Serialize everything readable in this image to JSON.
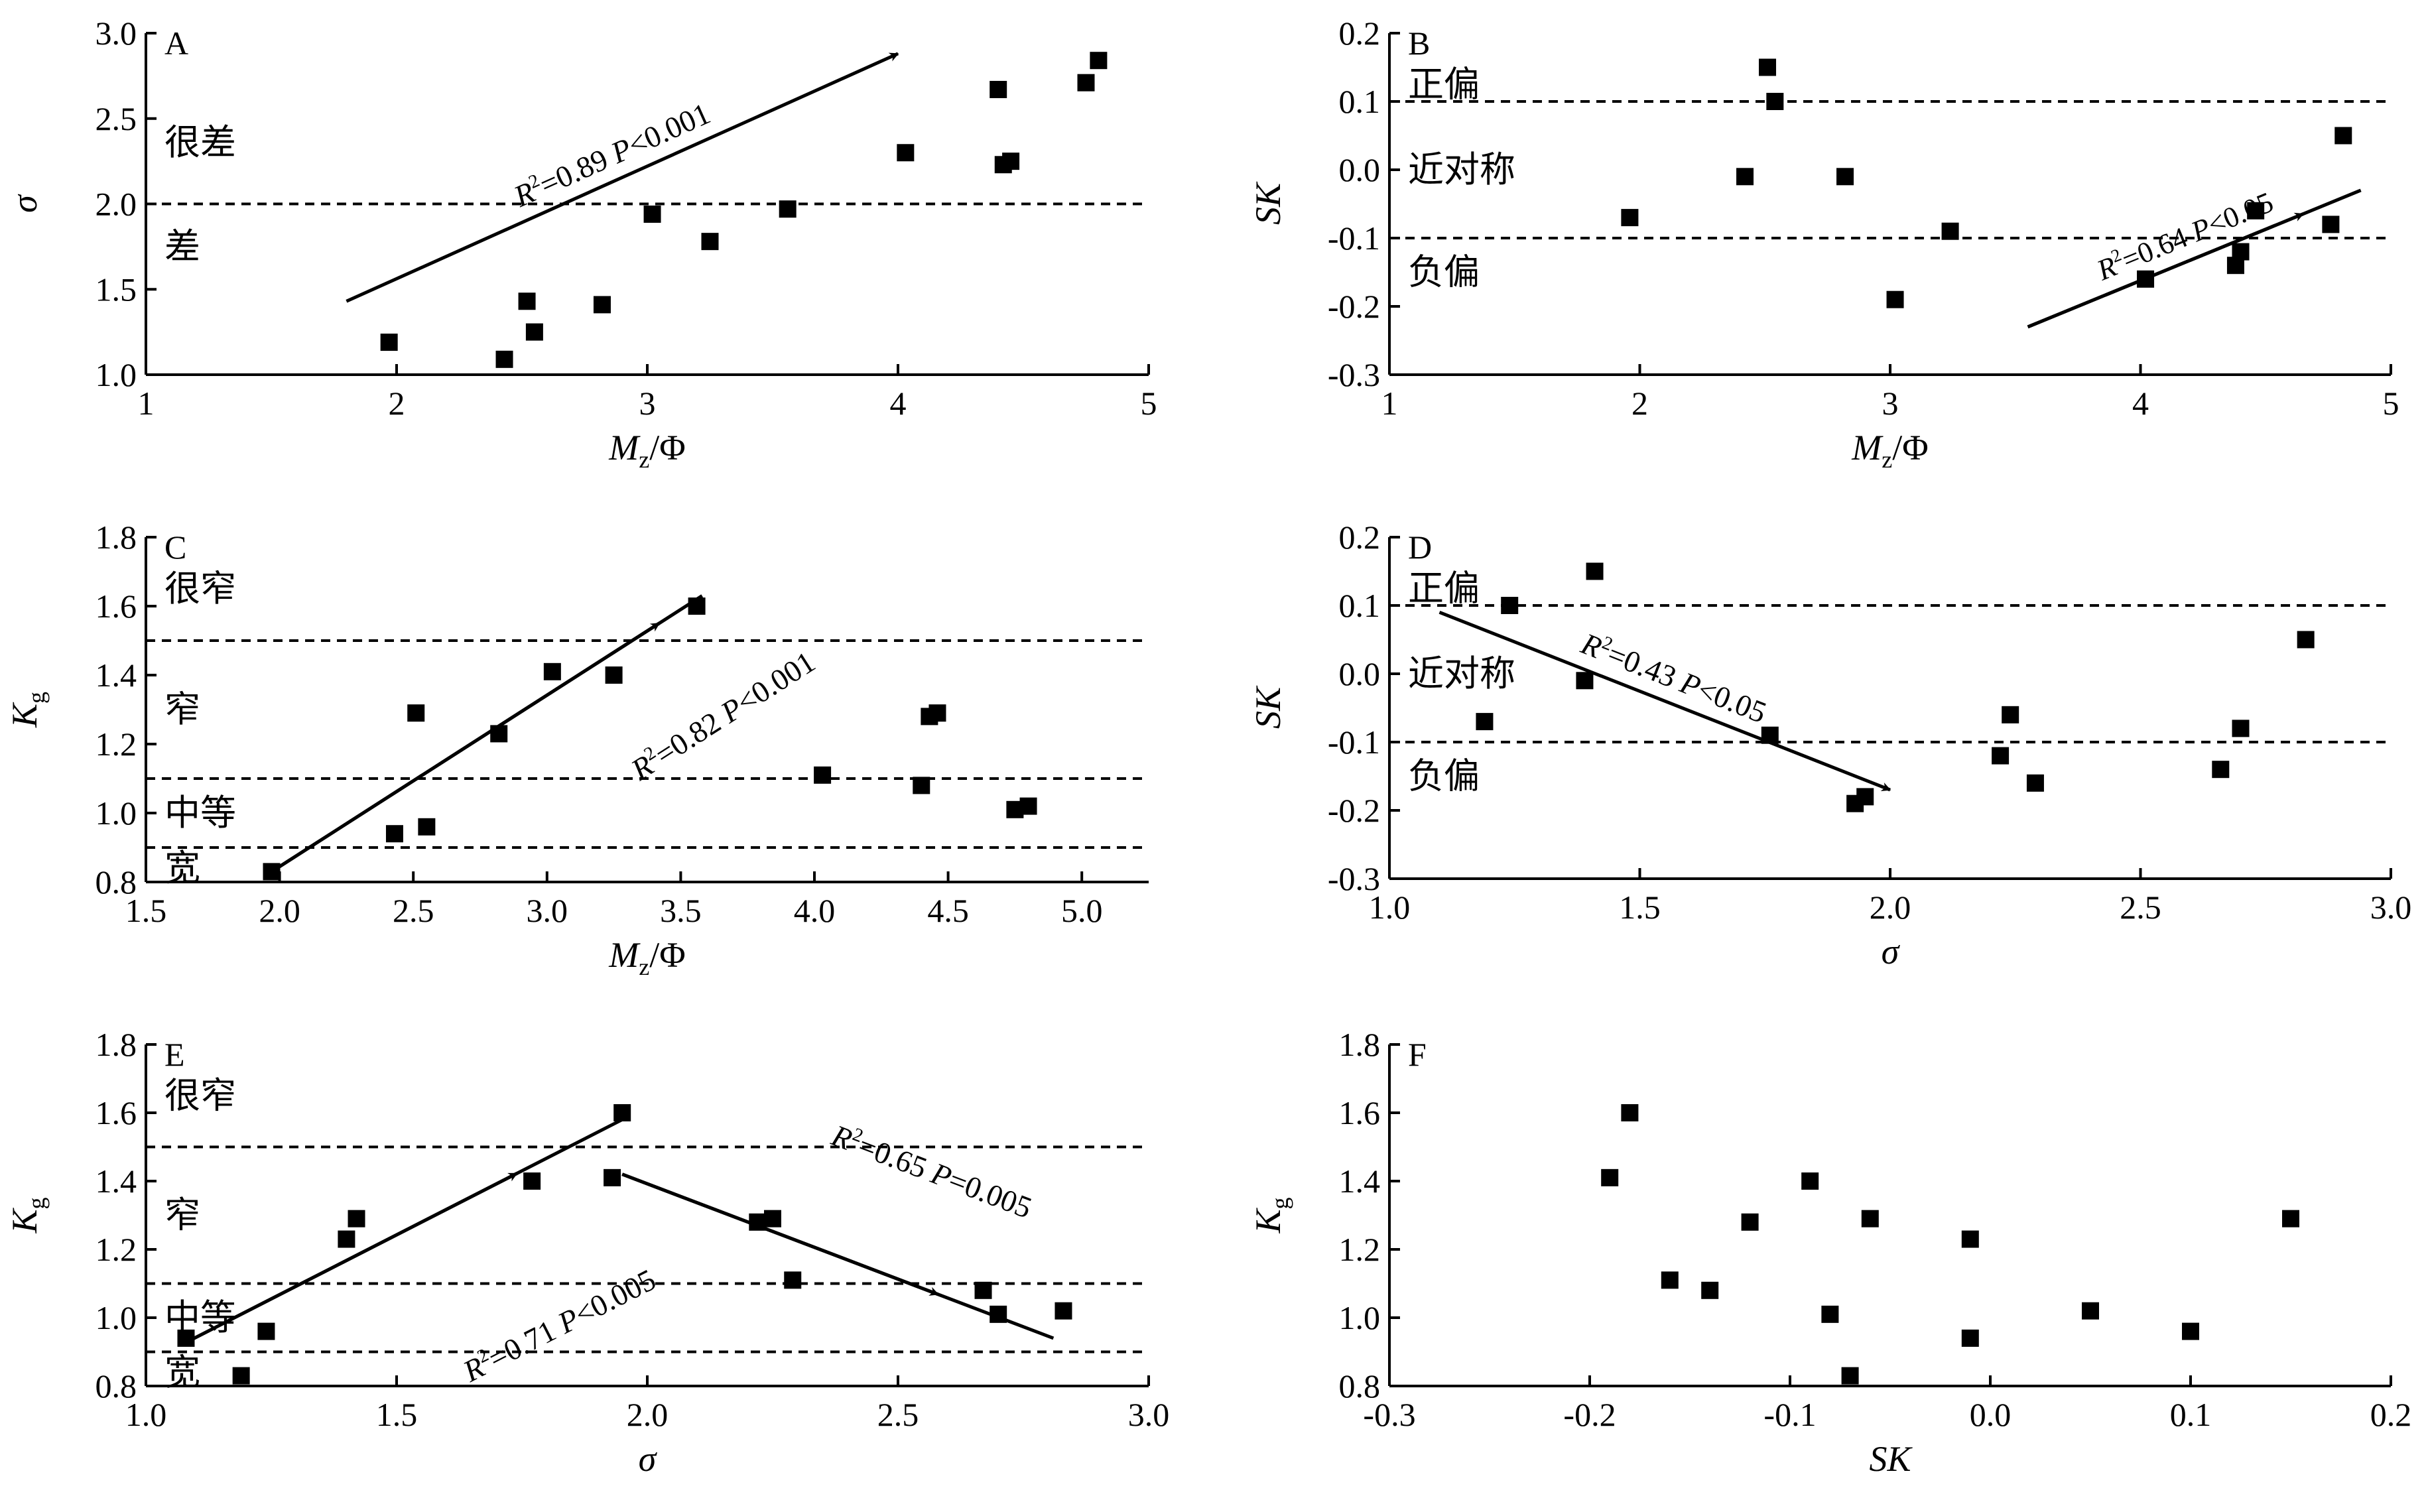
{
  "chart_data": [
    {
      "panel": "A",
      "type": "scatter",
      "xlabel_main": "M",
      "xlabel_sub": "z",
      "xlabel_rest": "/Φ",
      "ylabel": "σ",
      "xlim": [
        1,
        5
      ],
      "ylim": [
        1.0,
        3.0
      ],
      "xticks": [
        1,
        2,
        3,
        4,
        5
      ],
      "xtick_labels": [
        "1",
        "2",
        "3",
        "4",
        "5"
      ],
      "yticks": [
        1.0,
        1.5,
        2.0,
        2.5,
        3.0
      ],
      "ytick_labels": [
        "1.0",
        "1.5",
        "2.0",
        "2.5",
        "3.0"
      ],
      "points": [
        [
          1.97,
          1.19
        ],
        [
          2.43,
          1.09
        ],
        [
          2.52,
          1.43
        ],
        [
          2.55,
          1.25
        ],
        [
          2.82,
          1.41
        ],
        [
          3.02,
          1.94
        ],
        [
          3.25,
          1.78
        ],
        [
          3.56,
          1.97
        ],
        [
          4.03,
          2.3
        ],
        [
          4.4,
          2.67
        ],
        [
          4.42,
          2.23
        ],
        [
          4.45,
          2.25
        ],
        [
          4.75,
          2.71
        ],
        [
          4.8,
          2.84
        ]
      ],
      "hlines": [
        2.0
      ],
      "zones": [
        {
          "label": "很差",
          "y": 2.36
        },
        {
          "label": "差",
          "y": 1.75
        }
      ],
      "arrows": [
        {
          "from": [
            1.8,
            1.43
          ],
          "to": [
            4.0,
            2.88
          ],
          "head": "end"
        }
      ],
      "annotations": [
        {
          "sup": "2",
          "text_pre": "R",
          "text_post": "=0.89  ",
          "italic2": "P",
          "text_end": "<0.001",
          "x": 1.8,
          "y": 1.43,
          "to": [
            4.0,
            2.88
          ],
          "offset": -22,
          "size": 46
        }
      ]
    },
    {
      "panel": "B",
      "type": "scatter",
      "xlabel_main": "M",
      "xlabel_sub": "z",
      "xlabel_rest": "/Φ",
      "ylabel": "SK",
      "xlim": [
        1,
        5
      ],
      "ylim": [
        -0.3,
        0.2
      ],
      "xticks": [
        1,
        2,
        3,
        4,
        5
      ],
      "xtick_labels": [
        "1",
        "2",
        "3",
        "4",
        "5"
      ],
      "yticks": [
        -0.3,
        -0.2,
        -0.1,
        0.0,
        0.1,
        0.2
      ],
      "ytick_labels": [
        "-0.3",
        "-0.2",
        "-0.1",
        "0.0",
        "0.1",
        "0.2"
      ],
      "points": [
        [
          1.96,
          -0.07
        ],
        [
          2.42,
          -0.01
        ],
        [
          2.51,
          0.15
        ],
        [
          2.54,
          0.1
        ],
        [
          2.82,
          -0.01
        ],
        [
          3.02,
          -0.19
        ],
        [
          3.24,
          -0.09
        ],
        [
          4.02,
          -0.16
        ],
        [
          4.38,
          -0.14
        ],
        [
          4.4,
          -0.12
        ],
        [
          4.46,
          -0.06
        ],
        [
          4.76,
          -0.08
        ],
        [
          4.81,
          0.05
        ]
      ],
      "hlines": [
        0.1,
        -0.1
      ],
      "zones": [
        {
          "label": "正偏",
          "y": 0.125
        },
        {
          "label": "近对称",
          "y": 0.0
        },
        {
          "label": "负偏",
          "y": -0.15
        }
      ],
      "arrows": [
        {
          "from": [
            3.55,
            -0.23
          ],
          "to": [
            4.88,
            -0.03
          ],
          "head": "mid",
          "head_at": 4.65
        }
      ],
      "annotations": [
        {
          "sup": "2",
          "text_pre": "R",
          "text_post": "=0.64  ",
          "italic2": "P",
          "text_end": "<0.05",
          "x": 3.55,
          "y": -0.23,
          "to": [
            4.88,
            -0.03
          ],
          "offset": -22,
          "size": 44
        }
      ]
    },
    {
      "panel": "C",
      "type": "scatter",
      "xlabel_main": "M",
      "xlabel_sub": "z",
      "xlabel_rest": "/Φ",
      "ylabel_main": "K",
      "ylabel_sub": "g",
      "xlim": [
        1.5,
        5.25
      ],
      "ylim": [
        0.8,
        1.8
      ],
      "xticks": [
        1.5,
        2.0,
        2.5,
        3.0,
        3.5,
        4.0,
        4.5,
        5.0
      ],
      "xtick_labels": [
        "1.5",
        "2.0",
        "2.5",
        "3.0",
        "3.5",
        "4.0",
        "4.5",
        "5.0"
      ],
      "yticks": [
        0.8,
        1.0,
        1.2,
        1.4,
        1.6,
        1.8
      ],
      "ytick_labels": [
        "0.8",
        "1.0",
        "1.2",
        "1.4",
        "1.6",
        "1.8"
      ],
      "points": [
        [
          1.97,
          0.83
        ],
        [
          2.43,
          0.94
        ],
        [
          2.51,
          1.29
        ],
        [
          2.55,
          0.96
        ],
        [
          2.82,
          1.23
        ],
        [
          3.02,
          1.41
        ],
        [
          3.25,
          1.4
        ],
        [
          3.56,
          1.6
        ],
        [
          4.03,
          1.11
        ],
        [
          4.4,
          1.08
        ],
        [
          4.43,
          1.28
        ],
        [
          4.46,
          1.29
        ],
        [
          4.75,
          1.01
        ],
        [
          4.8,
          1.02
        ]
      ],
      "hlines": [
        1.5,
        1.1,
        0.9
      ],
      "zones": [
        {
          "label": "很窄",
          "y": 1.65
        },
        {
          "label": "窄",
          "y": 1.3
        },
        {
          "label": "中等",
          "y": 1.0
        },
        {
          "label": "宽",
          "y": 0.84
        }
      ],
      "arrows": [
        {
          "from": [
            1.95,
            0.82
          ],
          "to": [
            3.58,
            1.63
          ],
          "head": "mid",
          "head_at": 3.42
        }
      ],
      "annotations": [
        {
          "sup": "2",
          "text_pre": "R",
          "text_post": "=0.82  ",
          "italic2": "P",
          "text_end": "<0.001",
          "x": 2.8,
          "y": 0.93,
          "to": [
            4.43,
            1.74
          ],
          "offset": 48,
          "size": 46
        }
      ]
    },
    {
      "panel": "D",
      "type": "scatter",
      "xlabel": "σ",
      "ylabel": "SK",
      "xlim": [
        1.0,
        3.0
      ],
      "ylim": [
        -0.3,
        0.2
      ],
      "xticks": [
        1.0,
        1.5,
        2.0,
        2.5,
        3.0
      ],
      "xtick_labels": [
        "1.0",
        "1.5",
        "2.0",
        "2.5",
        "3.0"
      ],
      "yticks": [
        -0.3,
        -0.2,
        -0.1,
        0.0,
        0.1,
        0.2
      ],
      "ytick_labels": [
        "-0.3",
        "-0.2",
        "-0.1",
        "0.0",
        "0.1",
        "0.2"
      ],
      "points": [
        [
          1.19,
          -0.07
        ],
        [
          1.24,
          0.1
        ],
        [
          1.39,
          -0.01
        ],
        [
          1.41,
          0.15
        ],
        [
          1.76,
          -0.09
        ],
        [
          1.93,
          -0.19
        ],
        [
          1.95,
          -0.18
        ],
        [
          2.22,
          -0.12
        ],
        [
          2.24,
          -0.06
        ],
        [
          2.29,
          -0.16
        ],
        [
          2.66,
          -0.14
        ],
        [
          2.7,
          -0.08
        ],
        [
          2.83,
          0.05
        ]
      ],
      "hlines": [
        0.1,
        -0.1
      ],
      "zones": [
        {
          "label": "正偏",
          "y": 0.125
        },
        {
          "label": "近对称",
          "y": 0.0
        },
        {
          "label": "负偏",
          "y": -0.15
        }
      ],
      "arrows": [
        {
          "from": [
            1.1,
            0.09
          ],
          "to": [
            2.0,
            -0.17
          ],
          "head": "end"
        }
      ],
      "annotations": [
        {
          "sup": "2",
          "text_pre": "R",
          "text_post": "=0.43  ",
          "italic2": "P",
          "text_end": "<0.05",
          "x": 1.1,
          "y": 0.09,
          "to": [
            2.0,
            -0.17
          ],
          "offset": -22,
          "size": 46
        }
      ]
    },
    {
      "panel": "E",
      "type": "scatter",
      "xlabel": "σ",
      "ylabel_main": "K",
      "ylabel_sub": "g",
      "xlim": [
        1.0,
        3.0
      ],
      "ylim": [
        0.8,
        1.8
      ],
      "xticks": [
        1.0,
        1.5,
        2.0,
        2.5,
        3.0
      ],
      "xtick_labels": [
        "1.0",
        "1.5",
        "2.0",
        "2.5",
        "3.0"
      ],
      "yticks": [
        0.8,
        1.0,
        1.2,
        1.4,
        1.6,
        1.8
      ],
      "ytick_labels": [
        "0.8",
        "1.0",
        "1.2",
        "1.4",
        "1.6",
        "1.8"
      ],
      "points": [
        [
          1.08,
          0.94
        ],
        [
          1.19,
          0.83
        ],
        [
          1.24,
          0.96
        ],
        [
          1.4,
          1.23
        ],
        [
          1.42,
          1.29
        ],
        [
          1.77,
          1.4
        ],
        [
          1.93,
          1.41
        ],
        [
          1.95,
          1.6
        ],
        [
          2.22,
          1.28
        ],
        [
          2.25,
          1.29
        ],
        [
          2.29,
          1.11
        ],
        [
          2.67,
          1.08
        ],
        [
          2.7,
          1.01
        ],
        [
          2.83,
          1.02
        ]
      ],
      "hlines": [
        1.5,
        1.1,
        0.9
      ],
      "zones": [
        {
          "label": "很窄",
          "y": 1.65
        },
        {
          "label": "窄",
          "y": 1.3
        },
        {
          "label": "中等",
          "y": 1.0
        },
        {
          "label": "宽",
          "y": 0.84
        }
      ],
      "arrows": [
        {
          "from": [
            1.07,
            0.92
          ],
          "to": [
            1.95,
            1.58
          ],
          "head": "mid",
          "head_at": 1.74
        },
        {
          "from": [
            1.95,
            1.42
          ],
          "to": [
            2.81,
            0.94
          ],
          "head": "mid",
          "head_at": 2.58
        }
      ],
      "annotations": [
        {
          "sup": "2",
          "text_pre": "R",
          "text_post": "=0.71  ",
          "italic2": "P",
          "text_end": "<0.005",
          "x": 1.37,
          "y": 0.69,
          "to": [
            2.25,
            1.35
          ],
          "offset": 40,
          "size": 46
        },
        {
          "sup": "2",
          "text_pre": "R",
          "text_post": "=0.65  ",
          "italic2": "P",
          "text_end": "=0.005",
          "x": 2.12,
          "y": 1.6,
          "to": [
            2.98,
            1.12
          ],
          "offset": -22,
          "size": 46
        }
      ]
    },
    {
      "panel": "F",
      "type": "scatter",
      "xlabel": "SK",
      "ylabel_main": "K",
      "ylabel_sub": "g",
      "xlim": [
        -0.3,
        0.2
      ],
      "ylim": [
        0.8,
        1.8
      ],
      "xticks": [
        -0.3,
        -0.2,
        -0.1,
        0.0,
        0.1,
        0.2
      ],
      "xtick_labels": [
        "-0.3",
        "-0.2",
        "-0.1",
        "0.0",
        "0.1",
        "0.2"
      ],
      "yticks": [
        0.8,
        1.0,
        1.2,
        1.4,
        1.6,
        1.8
      ],
      "ytick_labels": [
        "0.8",
        "1.0",
        "1.2",
        "1.4",
        "1.6",
        "1.8"
      ],
      "points": [
        [
          -0.19,
          1.41
        ],
        [
          -0.18,
          1.6
        ],
        [
          -0.16,
          1.11
        ],
        [
          -0.14,
          1.08
        ],
        [
          -0.12,
          1.28
        ],
        [
          -0.09,
          1.4
        ],
        [
          -0.08,
          1.01
        ],
        [
          -0.07,
          0.83
        ],
        [
          -0.06,
          1.29
        ],
        [
          -0.01,
          1.23
        ],
        [
          -0.01,
          0.94
        ],
        [
          0.05,
          1.02
        ],
        [
          0.1,
          0.96
        ],
        [
          0.15,
          1.29
        ]
      ],
      "hlines": [],
      "zones": [],
      "arrows": [],
      "annotations": []
    }
  ]
}
